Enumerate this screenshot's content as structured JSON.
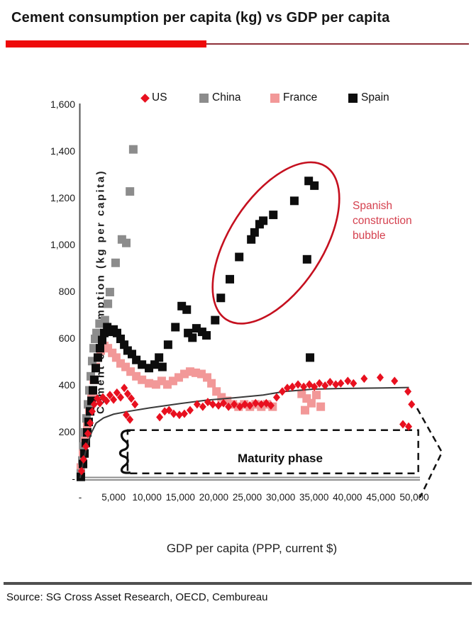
{
  "page": {
    "source": "Source: SG Cross Asset Research, OECD, Cembureau"
  },
  "chart_data": {
    "type": "scatter",
    "title": "Cement consumption per capita (kg) vs GDP per capita",
    "xlabel": "GDP per capita (PPP,  current $)",
    "ylabel": "Cement consumption (kg per capita)",
    "xlim": [
      0,
      50000
    ],
    "ylim": [
      0,
      1600
    ],
    "grid": false,
    "legend_position": "top",
    "x_ticks": [
      {
        "value": 0,
        "label": "-"
      },
      {
        "value": 5000,
        "label": "5,000"
      },
      {
        "value": 10000,
        "label": "10,000"
      },
      {
        "value": 15000,
        "label": "15,000"
      },
      {
        "value": 20000,
        "label": "20,000"
      },
      {
        "value": 25000,
        "label": "25,000"
      },
      {
        "value": 30000,
        "label": "30,000"
      },
      {
        "value": 35000,
        "label": "35,000"
      },
      {
        "value": 40000,
        "label": "40,000"
      },
      {
        "value": 45000,
        "label": "45,000"
      },
      {
        "value": 50000,
        "label": "50,000"
      }
    ],
    "y_ticks": [
      {
        "value": 0,
        "label": "-"
      },
      {
        "value": 200,
        "label": "200"
      },
      {
        "value": 400,
        "label": "400"
      },
      {
        "value": 600,
        "label": "600"
      },
      {
        "value": 800,
        "label": "800"
      },
      {
        "value": 1000,
        "label": "1,000"
      },
      {
        "value": 1200,
        "label": "1,200"
      },
      {
        "value": 1400,
        "label": "1,400"
      },
      {
        "value": 1600,
        "label": "1,600"
      }
    ],
    "series": [
      {
        "name": "France",
        "marker": "square",
        "color": "#f29898",
        "points": [
          [
            100,
            50
          ],
          [
            430,
            110
          ],
          [
            740,
            175
          ],
          [
            1060,
            235
          ],
          [
            1380,
            295
          ],
          [
            1700,
            365
          ],
          [
            2020,
            425
          ],
          [
            2340,
            480
          ],
          [
            2650,
            520
          ],
          [
            3080,
            550
          ],
          [
            3600,
            570
          ],
          [
            4150,
            560
          ],
          [
            4800,
            540
          ],
          [
            5400,
            520
          ],
          [
            6050,
            495
          ],
          [
            6800,
            480
          ],
          [
            7550,
            460
          ],
          [
            8400,
            440
          ],
          [
            9250,
            425
          ],
          [
            10300,
            410
          ],
          [
            11350,
            405
          ],
          [
            12200,
            420
          ],
          [
            13050,
            405
          ],
          [
            13900,
            420
          ],
          [
            14750,
            435
          ],
          [
            15600,
            450
          ],
          [
            16450,
            460
          ],
          [
            17300,
            455
          ],
          [
            18150,
            450
          ],
          [
            19000,
            435
          ],
          [
            19650,
            410
          ],
          [
            20400,
            375
          ],
          [
            21150,
            350
          ],
          [
            22000,
            335
          ],
          [
            22850,
            320
          ],
          [
            23700,
            310
          ],
          [
            24550,
            320
          ],
          [
            25400,
            310
          ],
          [
            26250,
            320
          ],
          [
            27100,
            310
          ],
          [
            27950,
            320
          ],
          [
            28800,
            310
          ],
          [
            33150,
            365
          ],
          [
            33650,
            295
          ],
          [
            33900,
            345
          ],
          [
            34600,
            325
          ],
          [
            35350,
            360
          ],
          [
            36000,
            310
          ]
        ]
      },
      {
        "name": "China",
        "marker": "square",
        "color": "#8c8c8c",
        "points": [
          [
            100,
            25
          ],
          [
            320,
            80
          ],
          [
            530,
            140
          ],
          [
            740,
            200
          ],
          [
            950,
            260
          ],
          [
            1170,
            320
          ],
          [
            1380,
            380
          ],
          [
            1590,
            440
          ],
          [
            1800,
            505
          ],
          [
            2020,
            560
          ],
          [
            2230,
            600
          ],
          [
            2450,
            625
          ],
          [
            2900,
            665
          ],
          [
            3700,
            680
          ],
          [
            4150,
            750
          ],
          [
            4450,
            800
          ],
          [
            5300,
            925
          ],
          [
            6250,
            1025
          ],
          [
            6900,
            1010
          ],
          [
            7450,
            1230
          ],
          [
            7950,
            1410
          ]
        ]
      },
      {
        "name": "Spain",
        "marker": "square",
        "color": "#0d0d0d",
        "points": [
          [
            100,
            10
          ],
          [
            430,
            65
          ],
          [
            640,
            110
          ],
          [
            850,
            155
          ],
          [
            1060,
            200
          ],
          [
            1270,
            245
          ],
          [
            1490,
            290
          ],
          [
            1700,
            335
          ],
          [
            1910,
            380
          ],
          [
            2120,
            425
          ],
          [
            2340,
            475
          ],
          [
            2650,
            520
          ],
          [
            2970,
            560
          ],
          [
            3290,
            595
          ],
          [
            3610,
            625
          ],
          [
            4050,
            650
          ],
          [
            4570,
            630
          ],
          [
            5000,
            640
          ],
          [
            5520,
            625
          ],
          [
            6050,
            600
          ],
          [
            6590,
            575
          ],
          [
            7100,
            550
          ],
          [
            7750,
            535
          ],
          [
            8400,
            510
          ],
          [
            9250,
            490
          ],
          [
            10300,
            475
          ],
          [
            11150,
            490
          ],
          [
            11800,
            520
          ],
          [
            12300,
            480
          ],
          [
            13150,
            575
          ],
          [
            14250,
            650
          ],
          [
            15200,
            740
          ],
          [
            15950,
            725
          ],
          [
            16150,
            625
          ],
          [
            16800,
            605
          ],
          [
            17400,
            645
          ],
          [
            18250,
            630
          ],
          [
            18900,
            615
          ],
          [
            20200,
            680
          ],
          [
            21050,
            775
          ],
          [
            22400,
            855
          ],
          [
            23800,
            950
          ],
          [
            25600,
            1025
          ],
          [
            26100,
            1055
          ],
          [
            26850,
            1090
          ],
          [
            27400,
            1105
          ],
          [
            28900,
            1130
          ],
          [
            32050,
            1190
          ],
          [
            33950,
            940
          ],
          [
            34200,
            1275
          ],
          [
            34400,
            520
          ],
          [
            35050,
            1255
          ]
        ]
      },
      {
        "name": "US",
        "marker": "diamond",
        "color": "#e8101f",
        "points": [
          [
            200,
            35
          ],
          [
            500,
            85
          ],
          [
            850,
            140
          ],
          [
            1150,
            195
          ],
          [
            1500,
            240
          ],
          [
            1800,
            290
          ],
          [
            2100,
            320
          ],
          [
            2550,
            345
          ],
          [
            2950,
            325
          ],
          [
            3400,
            350
          ],
          [
            3950,
            335
          ],
          [
            4450,
            360
          ],
          [
            5000,
            340
          ],
          [
            5500,
            370
          ],
          [
            6050,
            350
          ],
          [
            6600,
            390
          ],
          [
            6900,
            275
          ],
          [
            7100,
            365
          ],
          [
            7450,
            255
          ],
          [
            7650,
            345
          ],
          [
            8200,
            320
          ],
          [
            11900,
            265
          ],
          [
            12650,
            290
          ],
          [
            13300,
            295
          ],
          [
            14000,
            280
          ],
          [
            14850,
            275
          ],
          [
            15600,
            280
          ],
          [
            16450,
            295
          ],
          [
            17500,
            320
          ],
          [
            18350,
            310
          ],
          [
            19100,
            330
          ],
          [
            19850,
            320
          ],
          [
            20700,
            315
          ],
          [
            21450,
            325
          ],
          [
            22200,
            310
          ],
          [
            23050,
            320
          ],
          [
            23900,
            310
          ],
          [
            24650,
            320
          ],
          [
            25400,
            315
          ],
          [
            26250,
            325
          ],
          [
            27100,
            320
          ],
          [
            27850,
            325
          ],
          [
            28550,
            315
          ],
          [
            29400,
            350
          ],
          [
            30250,
            375
          ],
          [
            31000,
            390
          ],
          [
            31750,
            395
          ],
          [
            32600,
            405
          ],
          [
            33450,
            395
          ],
          [
            34300,
            405
          ],
          [
            35050,
            395
          ],
          [
            35800,
            410
          ],
          [
            36650,
            400
          ],
          [
            37400,
            415
          ],
          [
            38250,
            405
          ],
          [
            39000,
            410
          ],
          [
            40050,
            420
          ],
          [
            40900,
            410
          ],
          [
            42500,
            430
          ],
          [
            44900,
            435
          ],
          [
            47050,
            420
          ],
          [
            48300,
            235
          ],
          [
            49050,
            375
          ],
          [
            49150,
            225
          ],
          [
            49600,
            320
          ]
        ]
      }
    ],
    "trend_line": {
      "name": "maturity-curve",
      "color": "#3a3a3a",
      "points": [
        [
          0,
          5
        ],
        [
          500,
          80
        ],
        [
          1000,
          140
        ],
        [
          1700,
          200
        ],
        [
          2400,
          240
        ],
        [
          3500,
          262
        ],
        [
          5000,
          278
        ],
        [
          7200,
          290
        ],
        [
          10400,
          305
        ],
        [
          14600,
          322
        ],
        [
          18900,
          338
        ],
        [
          23100,
          348
        ],
        [
          27400,
          360
        ],
        [
          30600,
          375
        ],
        [
          34800,
          385
        ],
        [
          39100,
          388
        ],
        [
          45400,
          390
        ],
        [
          49200,
          392
        ]
      ]
    },
    "annotations": {
      "spanish_bubble": {
        "text": "Spanish construction bubble",
        "text_color": "#d5414f",
        "ellipse_color": "#c5101f",
        "ellipse": {
          "cx_gdp": 29300,
          "cy_kg": 1010,
          "rx_gdp": 7000,
          "ry_kg": 390,
          "rotate_deg": 33
        }
      },
      "maturity": {
        "text": "Maturity phase",
        "box": {
          "x1_gdp": 7100,
          "x2_gdp": 50600,
          "y1_kg": 25,
          "y2_kg": 210
        }
      }
    },
    "colors": {
      "title_bar_red": "#ee0a0a",
      "title_bar_line": "#8e3038",
      "axis_line": "#555555",
      "baseline_gray": "#8f8f8f",
      "footer_rule": "#4f4f4f"
    }
  }
}
